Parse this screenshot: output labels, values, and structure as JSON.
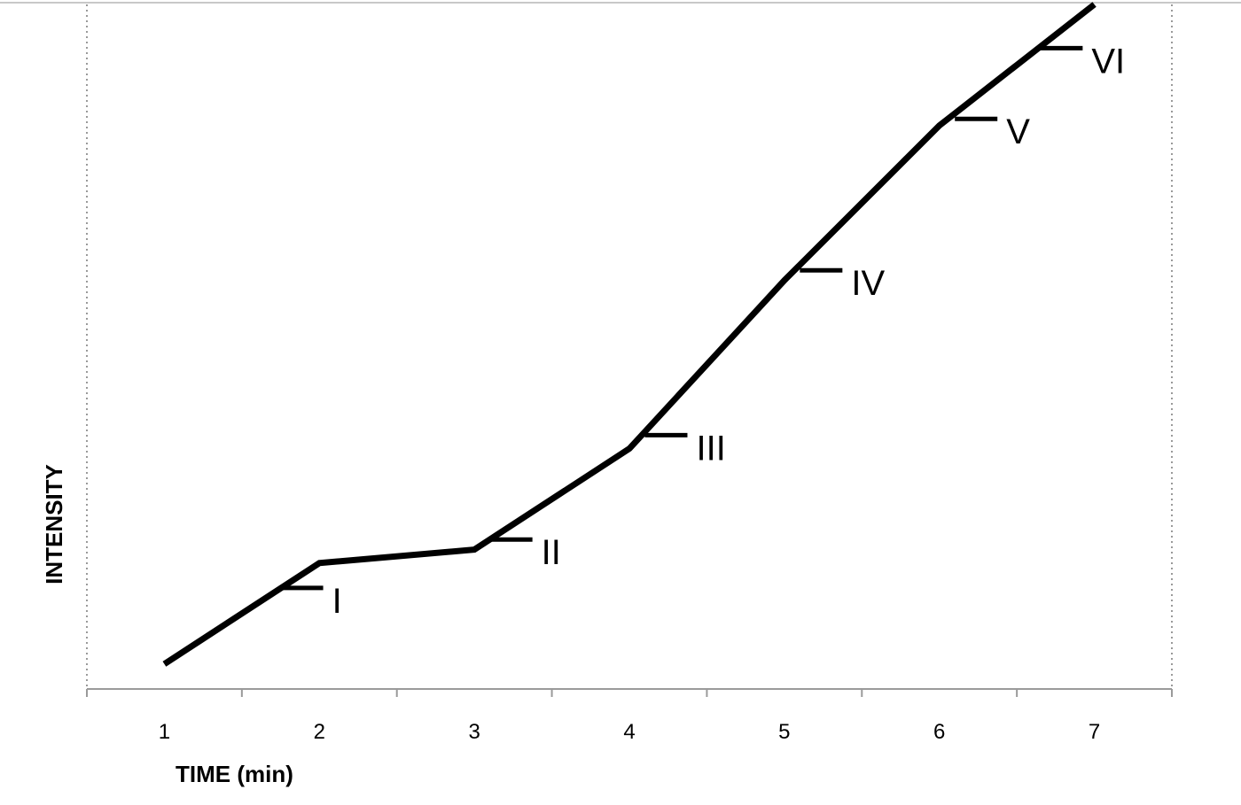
{
  "chart_data": {
    "type": "line",
    "title": "",
    "xlabel": "TIME (min)",
    "ylabel": "INTENSITY",
    "x_ticks": [
      "1",
      "2",
      "3",
      "4",
      "5",
      "6",
      "7"
    ],
    "xlim": [
      0.5,
      7.5
    ],
    "ylim": [
      0,
      10
    ],
    "y_ticks_shown": false,
    "grid": false,
    "legend": "none",
    "line_color": "#000000",
    "series": [
      {
        "x": [
          1,
          2,
          3,
          4,
          5,
          6,
          7
        ],
        "y": [
          0.2,
          1.7,
          1.9,
          3.4,
          5.9,
          8.2,
          10.0
        ]
      }
    ],
    "annotations": [
      {
        "label": "I",
        "x": 1.75,
        "y": 1.33
      },
      {
        "label": "II",
        "x": 3.1,
        "y": 2.05
      },
      {
        "label": "III",
        "x": 4.1,
        "y": 3.6
      },
      {
        "label": "IV",
        "x": 5.1,
        "y": 6.05
      },
      {
        "label": "V",
        "x": 6.1,
        "y": 8.3
      },
      {
        "label": "VI",
        "x": 6.65,
        "y": 9.35
      }
    ]
  }
}
